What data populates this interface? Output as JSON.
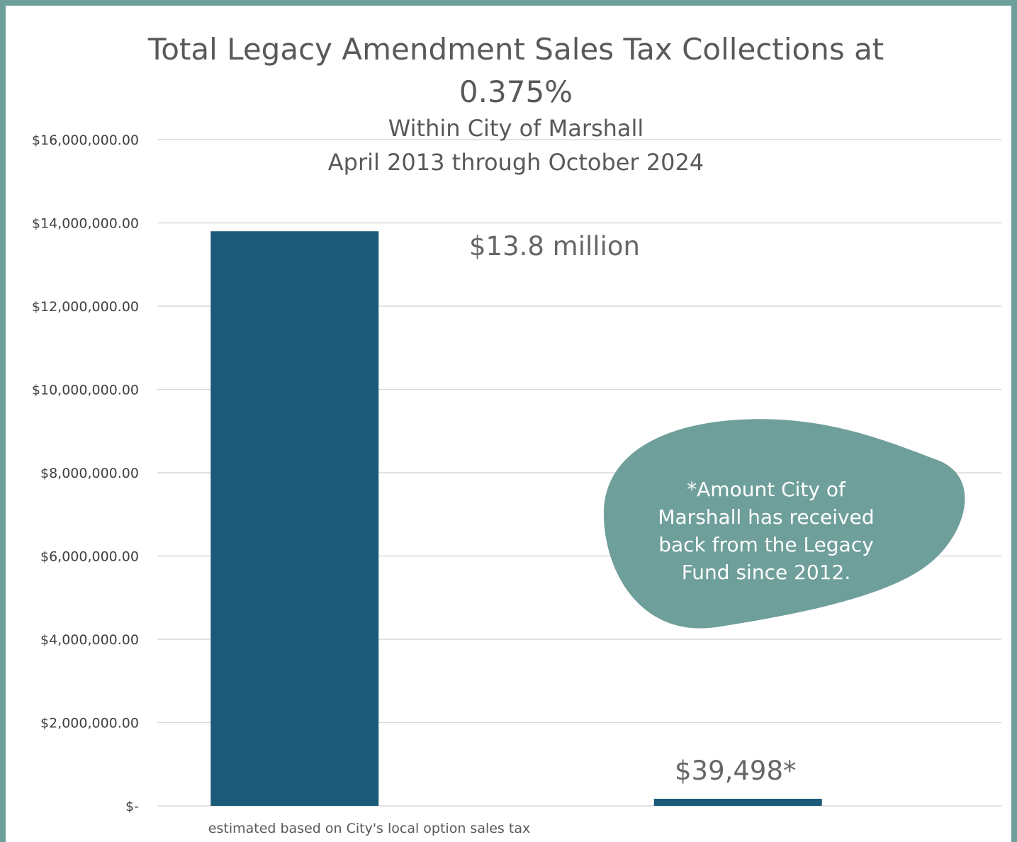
{
  "chart_data": {
    "type": "bar",
    "title": "Total Legacy Amendment Sales Tax Collections at 0.375%",
    "title_lines": [
      "Total Legacy Amendment Sales Tax Collections at",
      "0.375%"
    ],
    "subtitle_lines": [
      "Within City of Marshall",
      "April 2013 through October 2024"
    ],
    "categories": [
      "estimated based on City's local option sales tax",
      ""
    ],
    "values": [
      13800000,
      39498
    ],
    "data_labels": [
      "$13.8 million",
      "$39,498*"
    ],
    "ylim": [
      0,
      16000000
    ],
    "y_ticks": [
      {
        "value": 16000000,
        "label": "$16,000,000.00"
      },
      {
        "value": 14000000,
        "label": "$14,000,000.00"
      },
      {
        "value": 12000000,
        "label": "$12,000,000.00"
      },
      {
        "value": 10000000,
        "label": "$10,000,000.00"
      },
      {
        "value": 8000000,
        "label": "$8,000,000.00"
      },
      {
        "value": 6000000,
        "label": "$6,000,000.00"
      },
      {
        "value": 4000000,
        "label": "$4,000,000.00"
      },
      {
        "value": 2000000,
        "label": "$2,000,000.00"
      },
      {
        "value": 0,
        "label": "$-"
      }
    ],
    "grid": true,
    "bar_color": "#1b5b79",
    "annotation": {
      "lines": [
        "*Amount City of",
        "Marshall has received",
        "back from the Legacy",
        "Fund since 2012."
      ],
      "color": "#6f9f9a"
    }
  },
  "colors": {
    "frame": "#6f9f9a",
    "gridline": "#d9d9d9"
  }
}
